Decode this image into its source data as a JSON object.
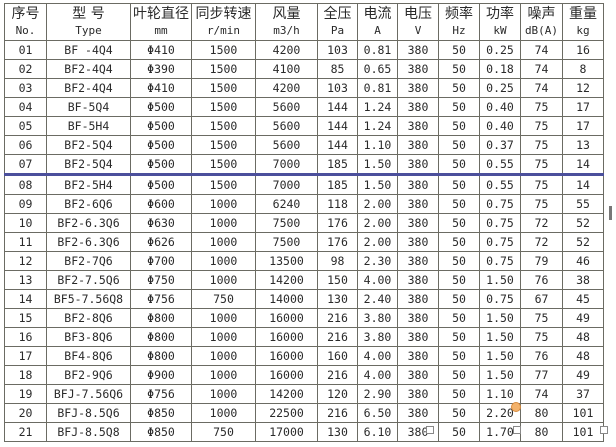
{
  "headers": [
    {
      "zh": "序号",
      "en": "No."
    },
    {
      "zh": "型 号",
      "en": "Type"
    },
    {
      "zh": "叶轮直径",
      "en": "mm"
    },
    {
      "zh": "同步转速",
      "en": "r/min"
    },
    {
      "zh": "风量",
      "en": "m3/h"
    },
    {
      "zh": "全压",
      "en": "Pa"
    },
    {
      "zh": "电流",
      "en": "A"
    },
    {
      "zh": "电压",
      "en": "V"
    },
    {
      "zh": "频率",
      "en": "Hz"
    },
    {
      "zh": "功率",
      "en": "kW"
    },
    {
      "zh": "噪声",
      "en": "dB(A)"
    },
    {
      "zh": "重量",
      "en": "kg"
    }
  ],
  "rows": [
    [
      "01",
      "BF -4Q4",
      "Φ410",
      "1500",
      "4200",
      "103",
      "0.81",
      "380",
      "50",
      "0.25",
      "74",
      "16"
    ],
    [
      "02",
      "BF2-4Q4",
      "Φ390",
      "1500",
      "4100",
      "85",
      "0.65",
      "380",
      "50",
      "0.18",
      "74",
      "8"
    ],
    [
      "03",
      "BF2-4Q4",
      "Φ410",
      "1500",
      "4200",
      "103",
      "0.81",
      "380",
      "50",
      "0.25",
      "74",
      "12"
    ],
    [
      "04",
      "BF-5Q4",
      "Φ500",
      "1500",
      "5600",
      "144",
      "1.24",
      "380",
      "50",
      "0.40",
      "75",
      "17"
    ],
    [
      "05",
      "BF-5H4",
      "Φ500",
      "1500",
      "5600",
      "144",
      "1.24",
      "380",
      "50",
      "0.40",
      "75",
      "17"
    ],
    [
      "06",
      "BF2-5Q4",
      "Φ500",
      "1500",
      "5600",
      "144",
      "1.10",
      "380",
      "50",
      "0.37",
      "75",
      "13"
    ],
    [
      "07",
      "BF2-5Q4",
      "Φ500",
      "1500",
      "7000",
      "185",
      "1.50",
      "380",
      "50",
      "0.55",
      "75",
      "14"
    ],
    [
      "08",
      "BF2-5H4",
      "Φ500",
      "1500",
      "7000",
      "185",
      "1.50",
      "380",
      "50",
      "0.55",
      "75",
      "14"
    ],
    [
      "09",
      "BF2-6Q6",
      "Φ600",
      "1000",
      "6240",
      "118",
      "2.00",
      "380",
      "50",
      "0.75",
      "75",
      "55"
    ],
    [
      "10",
      "BF2-6.3Q6",
      "Φ630",
      "1000",
      "7500",
      "176",
      "2.00",
      "380",
      "50",
      "0.75",
      "72",
      "52"
    ],
    [
      "11",
      "BF2-6.3Q6",
      "Φ626",
      "1000",
      "7500",
      "176",
      "2.00",
      "380",
      "50",
      "0.75",
      "72",
      "52"
    ],
    [
      "12",
      "BF2-7Q6",
      "Φ700",
      "1000",
      "13500",
      "98",
      "2.30",
      "380",
      "50",
      "0.75",
      "79",
      "46"
    ],
    [
      "13",
      "BF2-7.5Q6",
      "Φ750",
      "1000",
      "14200",
      "150",
      "4.00",
      "380",
      "50",
      "1.50",
      "76",
      "38"
    ],
    [
      "14",
      "BF5-7.56Q8",
      "Φ756",
      "750",
      "14000",
      "130",
      "2.40",
      "380",
      "50",
      "0.75",
      "67",
      "45"
    ],
    [
      "15",
      "BF2-8Q6",
      "Φ800",
      "1000",
      "16000",
      "216",
      "3.80",
      "380",
      "50",
      "1.50",
      "75",
      "49"
    ],
    [
      "16",
      "BF3-8Q6",
      "Φ800",
      "1000",
      "16000",
      "216",
      "3.80",
      "380",
      "50",
      "1.50",
      "75",
      "48"
    ],
    [
      "17",
      "BF4-8Q6",
      "Φ800",
      "1000",
      "16000",
      "160",
      "4.00",
      "380",
      "50",
      "1.50",
      "76",
      "48"
    ],
    [
      "18",
      "BF2-9Q6",
      "Φ900",
      "1000",
      "16000",
      "216",
      "4.00",
      "380",
      "50",
      "1.50",
      "77",
      "49"
    ],
    [
      "19",
      "BFJ-7.56Q6",
      "Φ756",
      "1000",
      "14200",
      "120",
      "2.90",
      "380",
      "50",
      "1.10",
      "74",
      "37"
    ],
    [
      "20",
      "BFJ-8.5Q6",
      "Φ850",
      "1000",
      "22500",
      "216",
      "6.50",
      "380",
      "50",
      "2.20",
      "80",
      "101"
    ],
    [
      "21",
      "BFJ-8.5Q8",
      "Φ850",
      "750",
      "17000",
      "130",
      "6.10",
      "380",
      "50",
      "1.70",
      "80",
      "101"
    ]
  ],
  "separator_after_row": "07",
  "colors": {
    "separator": "#4b4f9c",
    "border": "#6b6b63"
  }
}
